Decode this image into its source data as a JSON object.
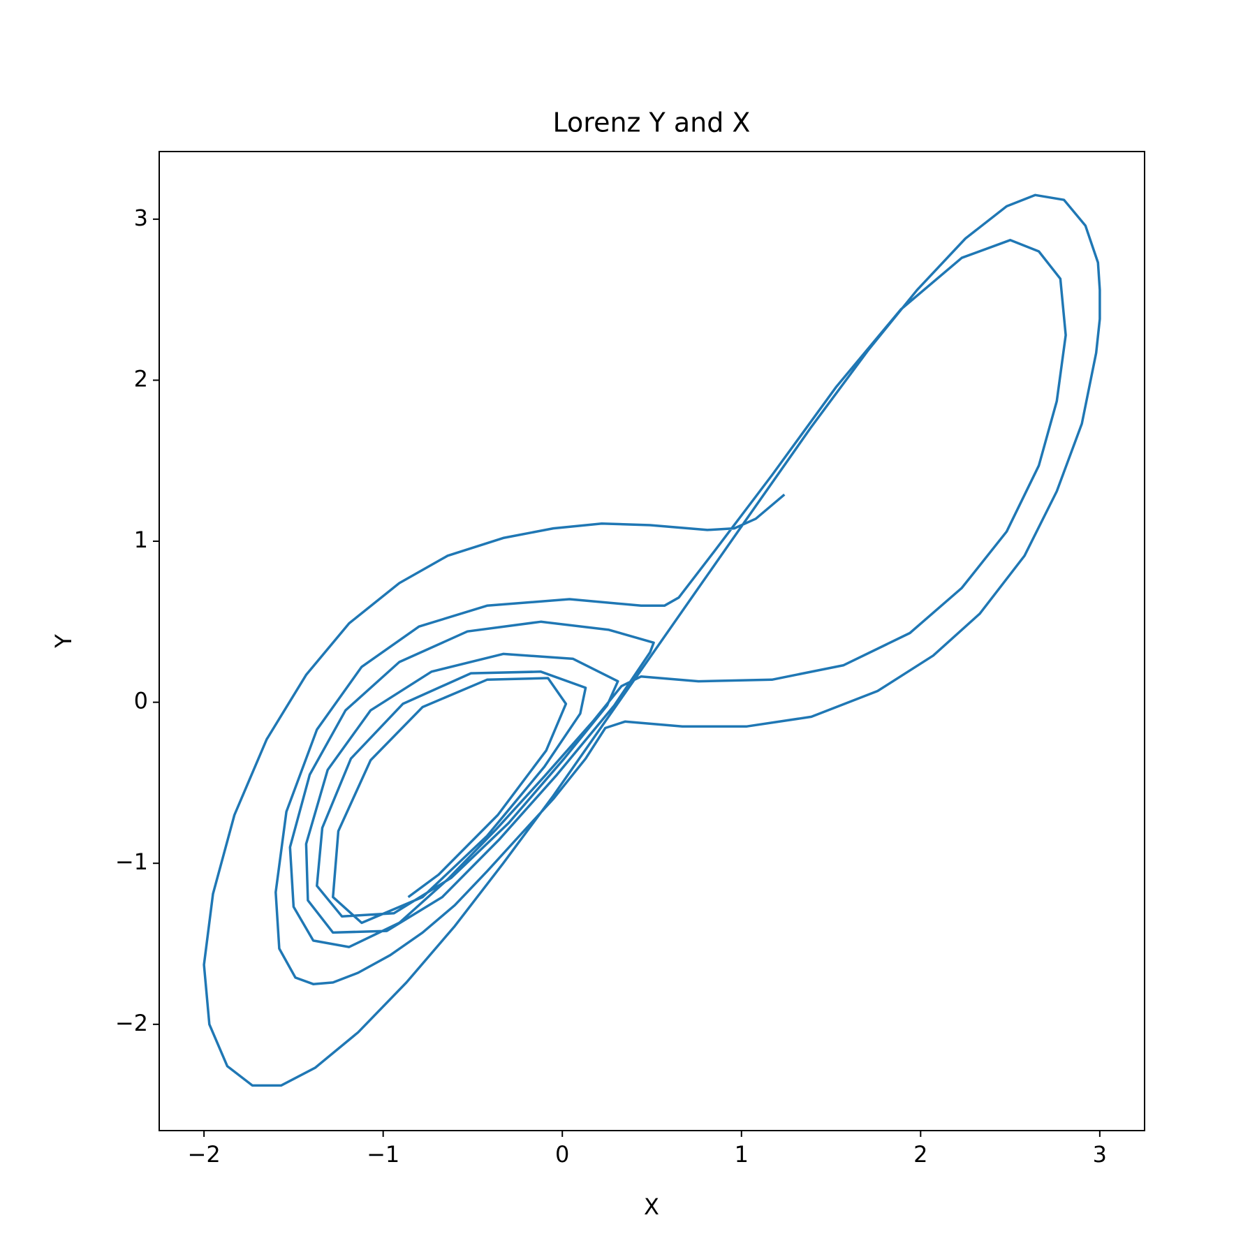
{
  "chart_data": {
    "type": "line",
    "title": "Lorenz Y and X",
    "xlabel": "X",
    "ylabel": "Y",
    "color": "#1f77b4",
    "xlim": [
      -2.25,
      3.25
    ],
    "ylim": [
      -2.66,
      3.42
    ],
    "xticks": [
      {
        "value": -2,
        "label": "−2"
      },
      {
        "value": -1,
        "label": "−1"
      },
      0,
      1,
      2,
      3
    ],
    "yticks": [
      {
        "value": -2,
        "label": "−2"
      },
      {
        "value": -1,
        "label": "−1"
      },
      0,
      1,
      2,
      3
    ],
    "x": [
      1.24,
      1.08,
      0.96,
      0.81,
      0.49,
      0.22,
      -0.05,
      -0.33,
      -0.64,
      -0.91,
      -1.19,
      -1.43,
      -1.65,
      -1.83,
      -1.95,
      -2.0,
      -1.97,
      -1.87,
      -1.73,
      -1.57,
      -1.38,
      -1.14,
      -0.87,
      -0.6,
      -0.33,
      -0.05,
      0.22,
      0.49,
      0.76,
      1.03,
      1.39,
      1.71,
      1.98,
      2.25,
      2.48,
      2.64,
      2.8,
      2.92,
      2.99,
      3.0,
      3.0,
      2.98,
      2.9,
      2.76,
      2.58,
      2.33,
      2.07,
      1.76,
      1.39,
      1.03,
      0.67,
      0.35,
      0.24,
      0.13,
      -0.05,
      -0.24,
      -0.42,
      -0.6,
      -0.78,
      -0.96,
      -1.14,
      -1.28,
      -1.39,
      -1.49,
      -1.58,
      -1.6,
      -1.54,
      -1.37,
      -1.12,
      -0.8,
      -0.42,
      0.04,
      0.44,
      0.57,
      0.65,
      0.85,
      1.17,
      1.53,
      1.89,
      2.23,
      2.5,
      2.66,
      2.78,
      2.81,
      2.76,
      2.66,
      2.48,
      2.23,
      1.94,
      1.57,
      1.17,
      0.76,
      0.44,
      0.33,
      0.17,
      -0.1,
      -0.37,
      -0.64,
      -0.91,
      -1.19,
      -1.39,
      -1.5,
      -1.52,
      -1.41,
      -1.21,
      -0.91,
      -0.53,
      -0.12,
      0.26,
      0.51,
      0.49,
      0.29,
      -0.03,
      -0.35,
      -0.67,
      -0.98,
      -1.28,
      -1.42,
      -1.43,
      -1.31,
      -1.07,
      -0.73,
      -0.33,
      0.06,
      0.31,
      0.25,
      0.01,
      -0.3,
      -0.62,
      -0.94,
      -1.23,
      -1.37,
      -1.34,
      -1.18,
      -0.89,
      -0.51,
      -0.12,
      0.13,
      0.1,
      -0.1,
      -0.42,
      -0.78,
      -1.12,
      -1.28,
      -1.25,
      -1.07,
      -0.78,
      -0.42,
      -0.08,
      0.02,
      -0.09,
      -0.36,
      -0.69,
      -0.86
    ],
    "values": [
      1.29,
      1.14,
      1.08,
      1.07,
      1.1,
      1.11,
      1.08,
      1.02,
      0.91,
      0.74,
      0.49,
      0.17,
      -0.23,
      -0.7,
      -1.19,
      -1.63,
      -2.0,
      -2.26,
      -2.38,
      -2.38,
      -2.27,
      -2.05,
      -1.74,
      -1.39,
      -1.0,
      -0.58,
      -0.15,
      0.28,
      0.71,
      1.14,
      1.71,
      2.19,
      2.56,
      2.88,
      3.08,
      3.15,
      3.12,
      2.96,
      2.73,
      2.56,
      2.38,
      2.17,
      1.73,
      1.31,
      0.91,
      0.55,
      0.29,
      0.07,
      -0.09,
      -0.15,
      -0.15,
      -0.12,
      -0.16,
      -0.35,
      -0.6,
      -0.83,
      -1.05,
      -1.26,
      -1.43,
      -1.57,
      -1.68,
      -1.74,
      -1.75,
      -1.71,
      -1.53,
      -1.18,
      -0.68,
      -0.17,
      0.22,
      0.47,
      0.6,
      0.64,
      0.6,
      0.6,
      0.65,
      0.94,
      1.41,
      1.96,
      2.44,
      2.76,
      2.87,
      2.8,
      2.63,
      2.28,
      1.87,
      1.47,
      1.06,
      0.71,
      0.43,
      0.23,
      0.14,
      0.13,
      0.16,
      0.1,
      -0.12,
      -0.46,
      -0.79,
      -1.1,
      -1.37,
      -1.52,
      -1.48,
      -1.27,
      -0.9,
      -0.45,
      -0.05,
      0.25,
      0.44,
      0.5,
      0.45,
      0.37,
      0.31,
      -0.02,
      -0.45,
      -0.85,
      -1.21,
      -1.42,
      -1.43,
      -1.23,
      -0.88,
      -0.42,
      -0.05,
      0.19,
      0.3,
      0.27,
      0.13,
      -0.02,
      -0.35,
      -0.75,
      -1.09,
      -1.31,
      -1.33,
      -1.14,
      -0.78,
      -0.35,
      -0.01,
      0.18,
      0.19,
      0.09,
      -0.07,
      -0.4,
      -0.83,
      -1.21,
      -1.37,
      -1.21,
      -0.8,
      -0.36,
      -0.03,
      0.14,
      0.15,
      -0.01,
      -0.3,
      -0.7,
      -1.07,
      -1.21
    ]
  }
}
